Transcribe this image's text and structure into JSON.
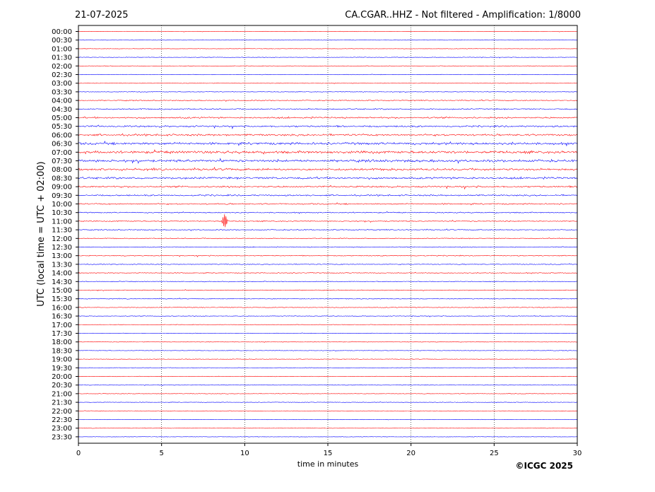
{
  "header": {
    "date": "21-07-2025",
    "title": "CA.CGAR..HHZ - Not filtered - Amplification: 1/8000"
  },
  "footer": {
    "credit": "©ICGC 2025"
  },
  "colors": {
    "trace_a": "#ff0000",
    "trace_b": "#0000ff",
    "axes": "#000000",
    "grid": "#000000"
  },
  "chart_data": {
    "type": "line",
    "xlabel": "time in minutes",
    "ylabel": "UTC (local time = UTC + 02:00)",
    "xlim": [
      0,
      30
    ],
    "x_ticks": [
      0,
      5,
      10,
      15,
      20,
      25,
      30
    ],
    "x_tick_labels": [
      "0",
      "5",
      "10",
      "15",
      "20",
      "25",
      "30"
    ],
    "grid": "vertical dotted at x ticks",
    "rows": [
      "00:00",
      "00:30",
      "01:00",
      "01:30",
      "02:00",
      "02:30",
      "03:00",
      "03:30",
      "04:00",
      "04:30",
      "05:00",
      "05:30",
      "06:00",
      "06:30",
      "07:00",
      "07:30",
      "08:00",
      "08:30",
      "09:00",
      "09:30",
      "10:00",
      "10:30",
      "11:00",
      "11:30",
      "12:00",
      "12:30",
      "13:00",
      "13:30",
      "14:00",
      "14:30",
      "15:00",
      "15:30",
      "16:00",
      "16:30",
      "17:00",
      "17:30",
      "18:00",
      "18:30",
      "19:00",
      "19:30",
      "20:00",
      "20:30",
      "21:00",
      "21:30",
      "22:00",
      "22:30",
      "23:00",
      "23:30"
    ],
    "row_colors": "alternating red (even rows) / blue (odd rows)",
    "noise_level": [
      0.4,
      0.4,
      0.4,
      0.5,
      0.5,
      0.5,
      0.5,
      0.6,
      0.9,
      1.1,
      1.5,
      1.6,
      1.8,
      2.2,
      2.4,
      2.3,
      2.0,
      1.9,
      1.6,
      1.4,
      1.2,
      1.0,
      1.0,
      0.9,
      0.8,
      0.8,
      0.8,
      0.8,
      0.8,
      0.7,
      0.7,
      0.7,
      0.7,
      0.6,
      0.5,
      0.5,
      0.5,
      0.5,
      0.5,
      0.5,
      0.5,
      0.5,
      0.5,
      0.5,
      0.4,
      0.4,
      0.4,
      0.4
    ],
    "events": [
      {
        "row": "11:00",
        "minute": 8.8,
        "amplitude": 10
      }
    ]
  }
}
